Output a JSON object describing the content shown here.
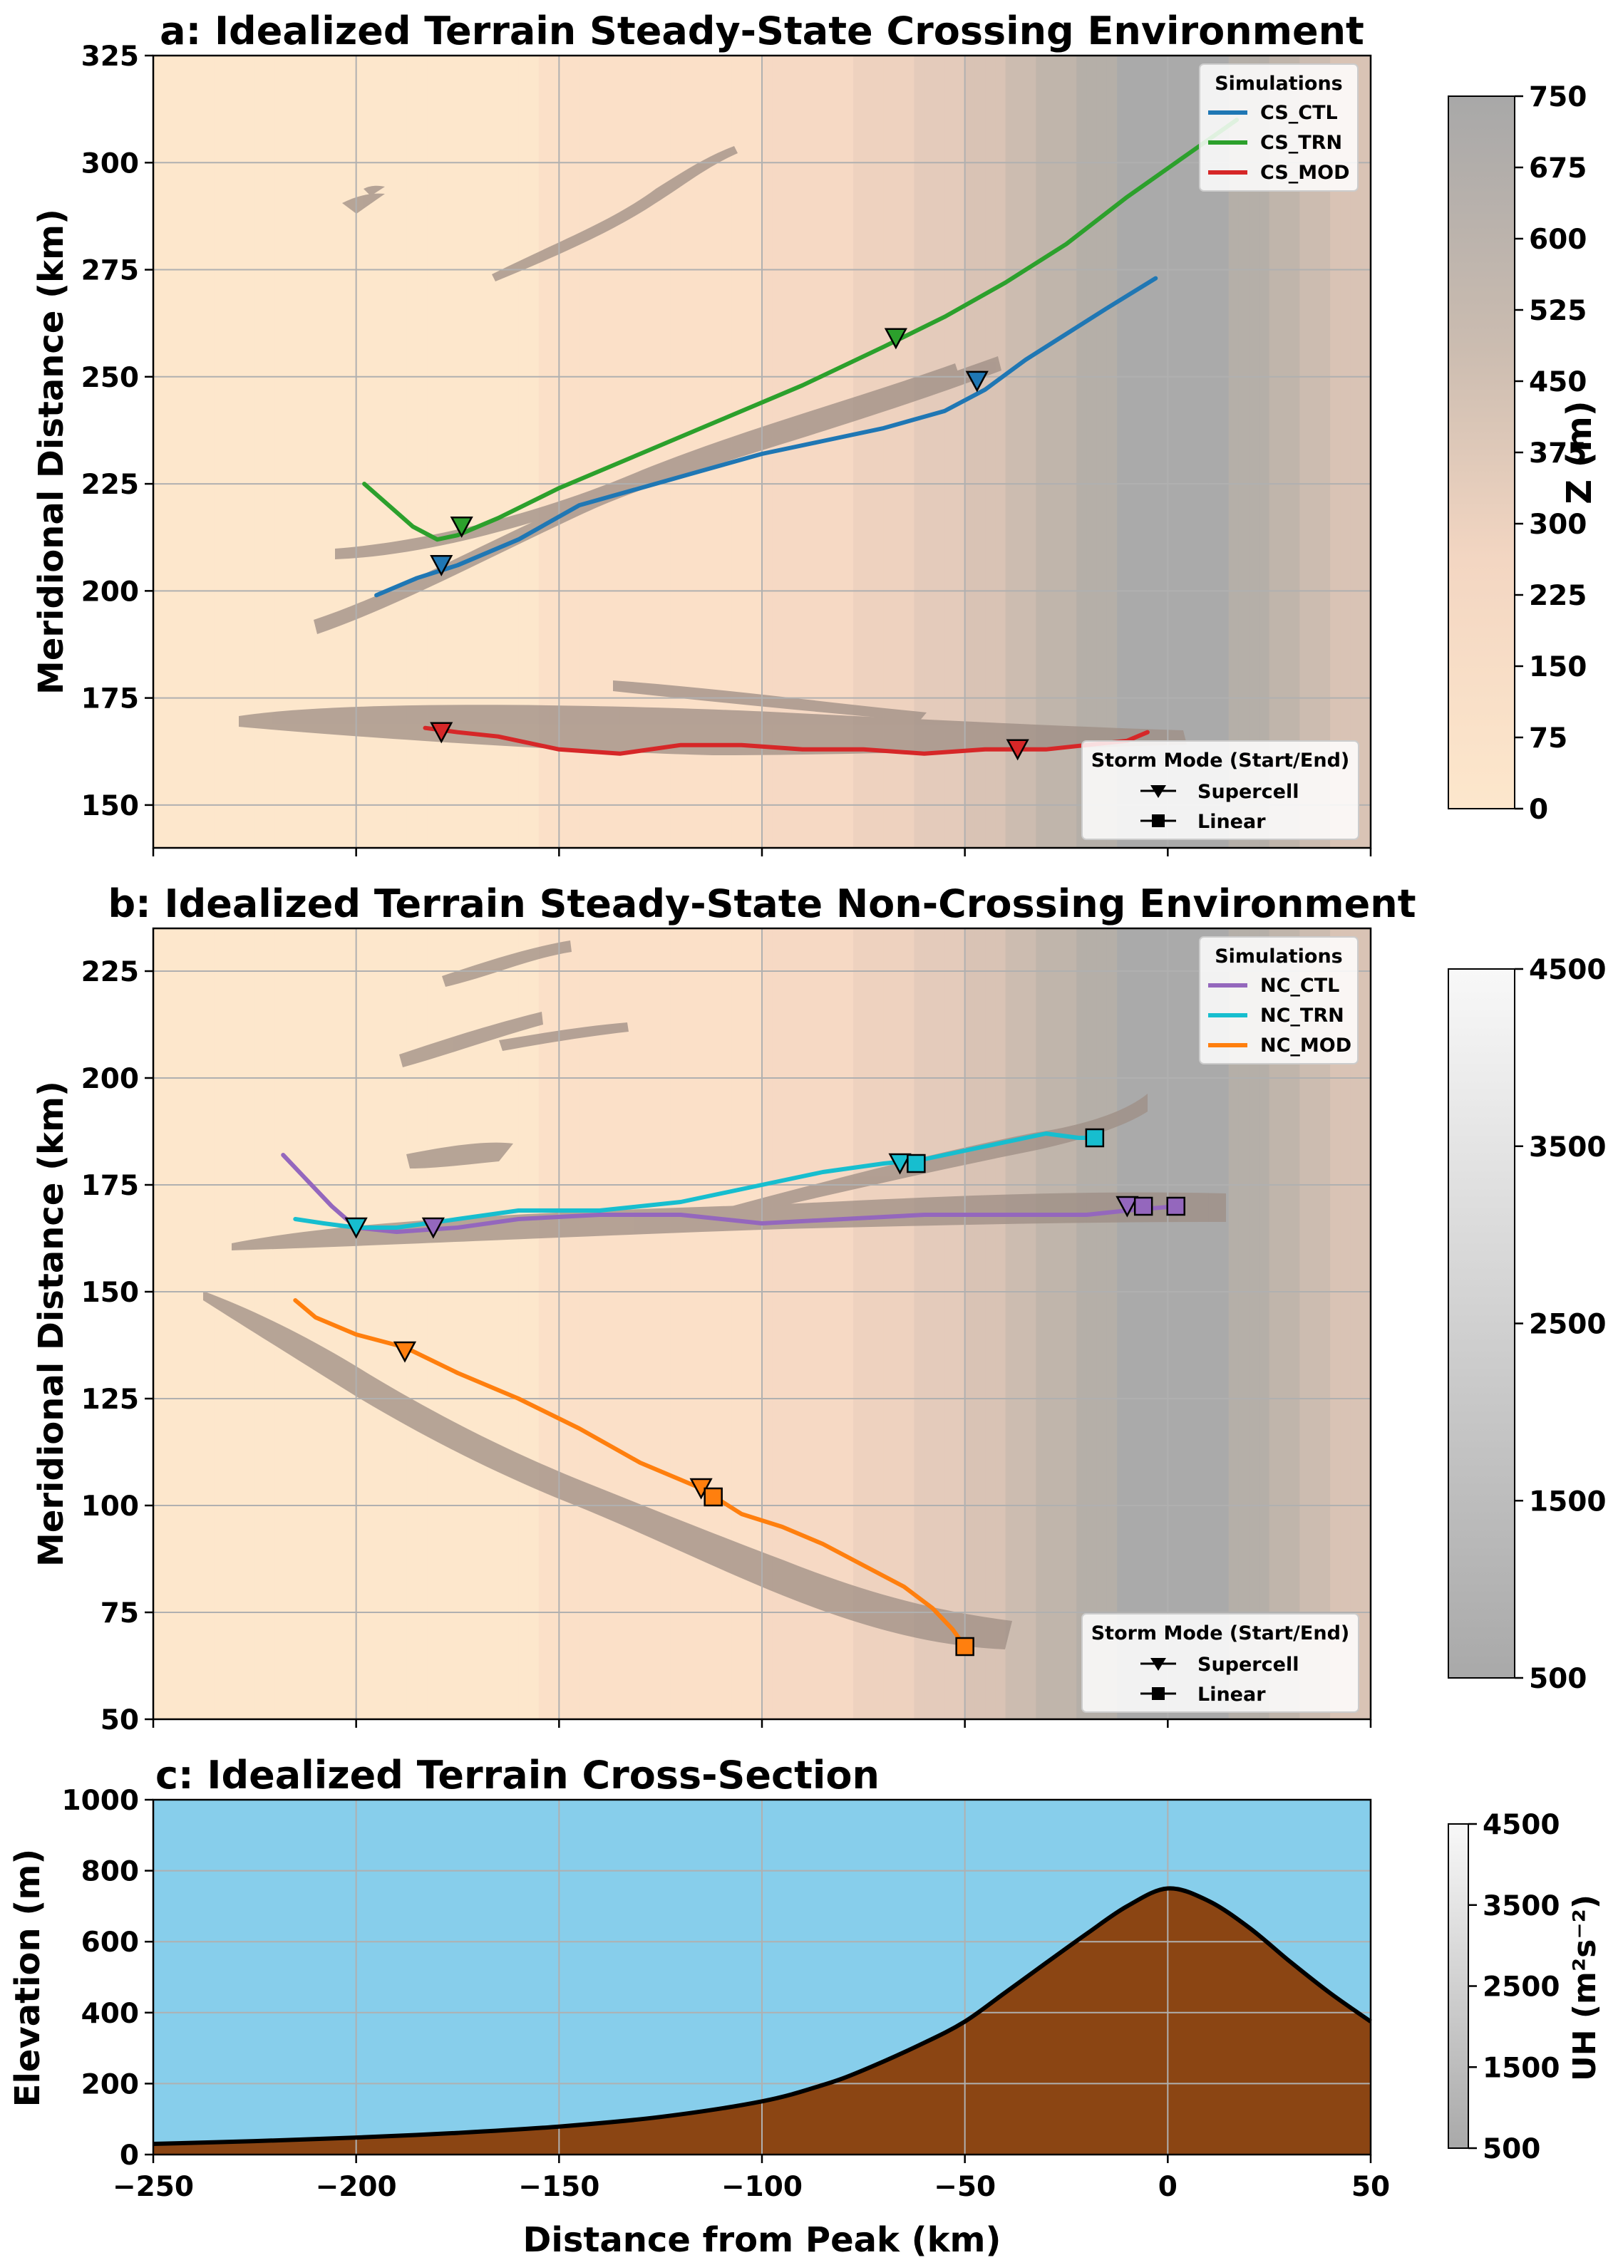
{
  "panel_a": {
    "title": "a: Idealized Terrain Steady-State Crossing Environment",
    "ylabel": "Meridional Distance (km)",
    "ylim": [
      140,
      325
    ],
    "yticks": [
      "150",
      "175",
      "200",
      "225",
      "250",
      "275",
      "300",
      "325"
    ],
    "legend_sim_title": "Simulations",
    "legend_mode_title": "Storm Mode (Start/End)",
    "legend_mode_items": [
      "Supercell",
      "Linear"
    ]
  },
  "panel_b": {
    "title": "b: Idealized Terrain Steady-State Non-Crossing Environment",
    "ylabel": "Meridional Distance (km)",
    "ylim": [
      50,
      235
    ],
    "yticks": [
      "50",
      "75",
      "100",
      "125",
      "150",
      "175",
      "200",
      "225"
    ],
    "legend_sim_title": "Simulations",
    "legend_mode_title": "Storm Mode (Start/End)",
    "legend_mode_items": [
      "Supercell",
      "Linear"
    ]
  },
  "panel_c": {
    "title": "c: Idealized Terrain Cross-Section",
    "ylabel": "Elevation (m)",
    "xlabel": "Distance from Peak (km)",
    "ylim": [
      0,
      1000
    ],
    "yticks": [
      "0",
      "200",
      "400",
      "600",
      "800",
      "1000"
    ],
    "xticks": [
      "−250",
      "−200",
      "−150",
      "−100",
      "−50",
      "0",
      "50"
    ]
  },
  "colorbar_z": {
    "label": "Z (m)",
    "ticks": [
      "0",
      "75",
      "150",
      "225",
      "300",
      "375",
      "450",
      "525",
      "600",
      "675",
      "750"
    ]
  },
  "colorbar_uh_b": {
    "ticks": [
      "500",
      "1500",
      "2500",
      "3500",
      "4500"
    ]
  },
  "colorbar_uh_c": {
    "label": "UH (m²s⁻²)",
    "ticks": [
      "500",
      "1500",
      "2500",
      "3500",
      "4500"
    ]
  },
  "chart_data": [
    {
      "type": "line",
      "panel": "a",
      "xlim": [
        -250,
        50
      ],
      "ylim": [
        140,
        325
      ],
      "series": [
        {
          "name": "CS_CTL",
          "color": "#1f77b4",
          "x": [
            -195,
            -185,
            -175,
            -160,
            -145,
            -130,
            -115,
            -100,
            -85,
            -70,
            -55,
            -45,
            -35,
            -25,
            -15,
            -3
          ],
          "y": [
            199,
            203,
            206,
            212,
            220,
            224,
            228,
            232,
            235,
            238,
            242,
            247,
            254,
            260,
            266,
            273
          ]
        },
        {
          "name": "CS_TRN",
          "color": "#2ca02c",
          "x": [
            -198,
            -192,
            -186,
            -180,
            -175,
            -165,
            -150,
            -130,
            -110,
            -90,
            -70,
            -55,
            -40,
            -25,
            -10,
            5,
            17
          ],
          "y": [
            225,
            220,
            215,
            212,
            213,
            217,
            224,
            232,
            240,
            248,
            257,
            264,
            272,
            281,
            292,
            302,
            310
          ]
        },
        {
          "name": "CS_MOD",
          "color": "#d62728",
          "x": [
            -183,
            -175,
            -165,
            -150,
            -135,
            -120,
            -105,
            -90,
            -75,
            -60,
            -45,
            -30,
            -20,
            -10,
            -5
          ],
          "y": [
            168,
            167,
            166,
            163,
            162,
            164,
            164,
            163,
            163,
            162,
            163,
            163,
            164,
            165,
            167
          ]
        }
      ],
      "markers": [
        {
          "series": "CS_CTL",
          "mode": "Supercell",
          "x": [
            -179,
            -47
          ],
          "y": [
            206,
            249
          ]
        },
        {
          "series": "CS_TRN",
          "mode": "Supercell",
          "x": [
            -174,
            -67
          ],
          "y": [
            215,
            259
          ]
        },
        {
          "series": "CS_MOD",
          "mode": "Supercell",
          "x": [
            -179,
            -37
          ],
          "y": [
            167,
            163
          ]
        }
      ]
    },
    {
      "type": "line",
      "panel": "b",
      "xlim": [
        -250,
        50
      ],
      "ylim": [
        50,
        235
      ],
      "series": [
        {
          "name": "NC_CTL",
          "color": "#9467bd",
          "x": [
            -218,
            -212,
            -206,
            -200,
            -190,
            -175,
            -160,
            -140,
            -120,
            -100,
            -80,
            -60,
            -40,
            -20,
            -10,
            2
          ],
          "y": [
            182,
            176,
            170,
            165,
            164,
            165,
            167,
            168,
            168,
            166,
            167,
            168,
            168,
            168,
            169,
            170
          ]
        },
        {
          "name": "NC_TRN",
          "color": "#17becf",
          "x": [
            -215,
            -208,
            -200,
            -190,
            -175,
            -160,
            -140,
            -120,
            -100,
            -85,
            -70,
            -60,
            -45,
            -30,
            -22,
            -18
          ],
          "y": [
            167,
            166,
            165,
            165,
            167,
            169,
            169,
            171,
            175,
            178,
            180,
            181,
            184,
            187,
            186,
            186
          ]
        },
        {
          "name": "NC_MOD",
          "color": "#ff7f0e",
          "x": [
            -215,
            -210,
            -200,
            -188,
            -175,
            -160,
            -145,
            -130,
            -115,
            -105,
            -95,
            -85,
            -75,
            -65,
            -58,
            -53,
            -50
          ],
          "y": [
            148,
            144,
            140,
            137,
            131,
            125,
            118,
            110,
            104,
            98,
            95,
            91,
            86,
            81,
            76,
            71,
            67
          ]
        }
      ],
      "markers": [
        {
          "series": "NC_CTL",
          "mode": "Supercell",
          "x": [
            -181,
            -10
          ],
          "y": [
            165,
            170
          ]
        },
        {
          "series": "NC_CTL",
          "mode": "Linear",
          "x": [
            -6,
            2
          ],
          "y": [
            170,
            170
          ]
        },
        {
          "series": "NC_TRN",
          "mode": "Supercell",
          "x": [
            -200,
            -66
          ],
          "y": [
            165,
            180
          ]
        },
        {
          "series": "NC_TRN",
          "mode": "Linear",
          "x": [
            -62,
            -18
          ],
          "y": [
            180,
            186
          ]
        },
        {
          "series": "NC_MOD",
          "mode": "Supercell",
          "x": [
            -188,
            -115
          ],
          "y": [
            136,
            104
          ]
        },
        {
          "series": "NC_MOD",
          "mode": "Linear",
          "x": [
            -112,
            -50
          ],
          "y": [
            102,
            67
          ]
        }
      ]
    },
    {
      "type": "area",
      "panel": "c",
      "xlim": [
        -250,
        50
      ],
      "ylim": [
        0,
        1000
      ],
      "terrain": {
        "peak_x": 0,
        "peak_height": 750,
        "x": [
          -250,
          -225,
          -200,
          -175,
          -150,
          -125,
          -100,
          -85,
          -75,
          -60,
          -50,
          -40,
          -30,
          -20,
          -10,
          0,
          10,
          20,
          30,
          40,
          50
        ],
        "y": [
          30,
          38,
          48,
          61,
          79,
          106,
          150,
          196,
          238,
          315,
          375,
          457,
          540,
          622,
          700,
          750,
          715,
          640,
          545,
          455,
          375
        ]
      },
      "colors": {
        "sky": "#87ceeb",
        "terrain": "#8b4513"
      }
    }
  ]
}
